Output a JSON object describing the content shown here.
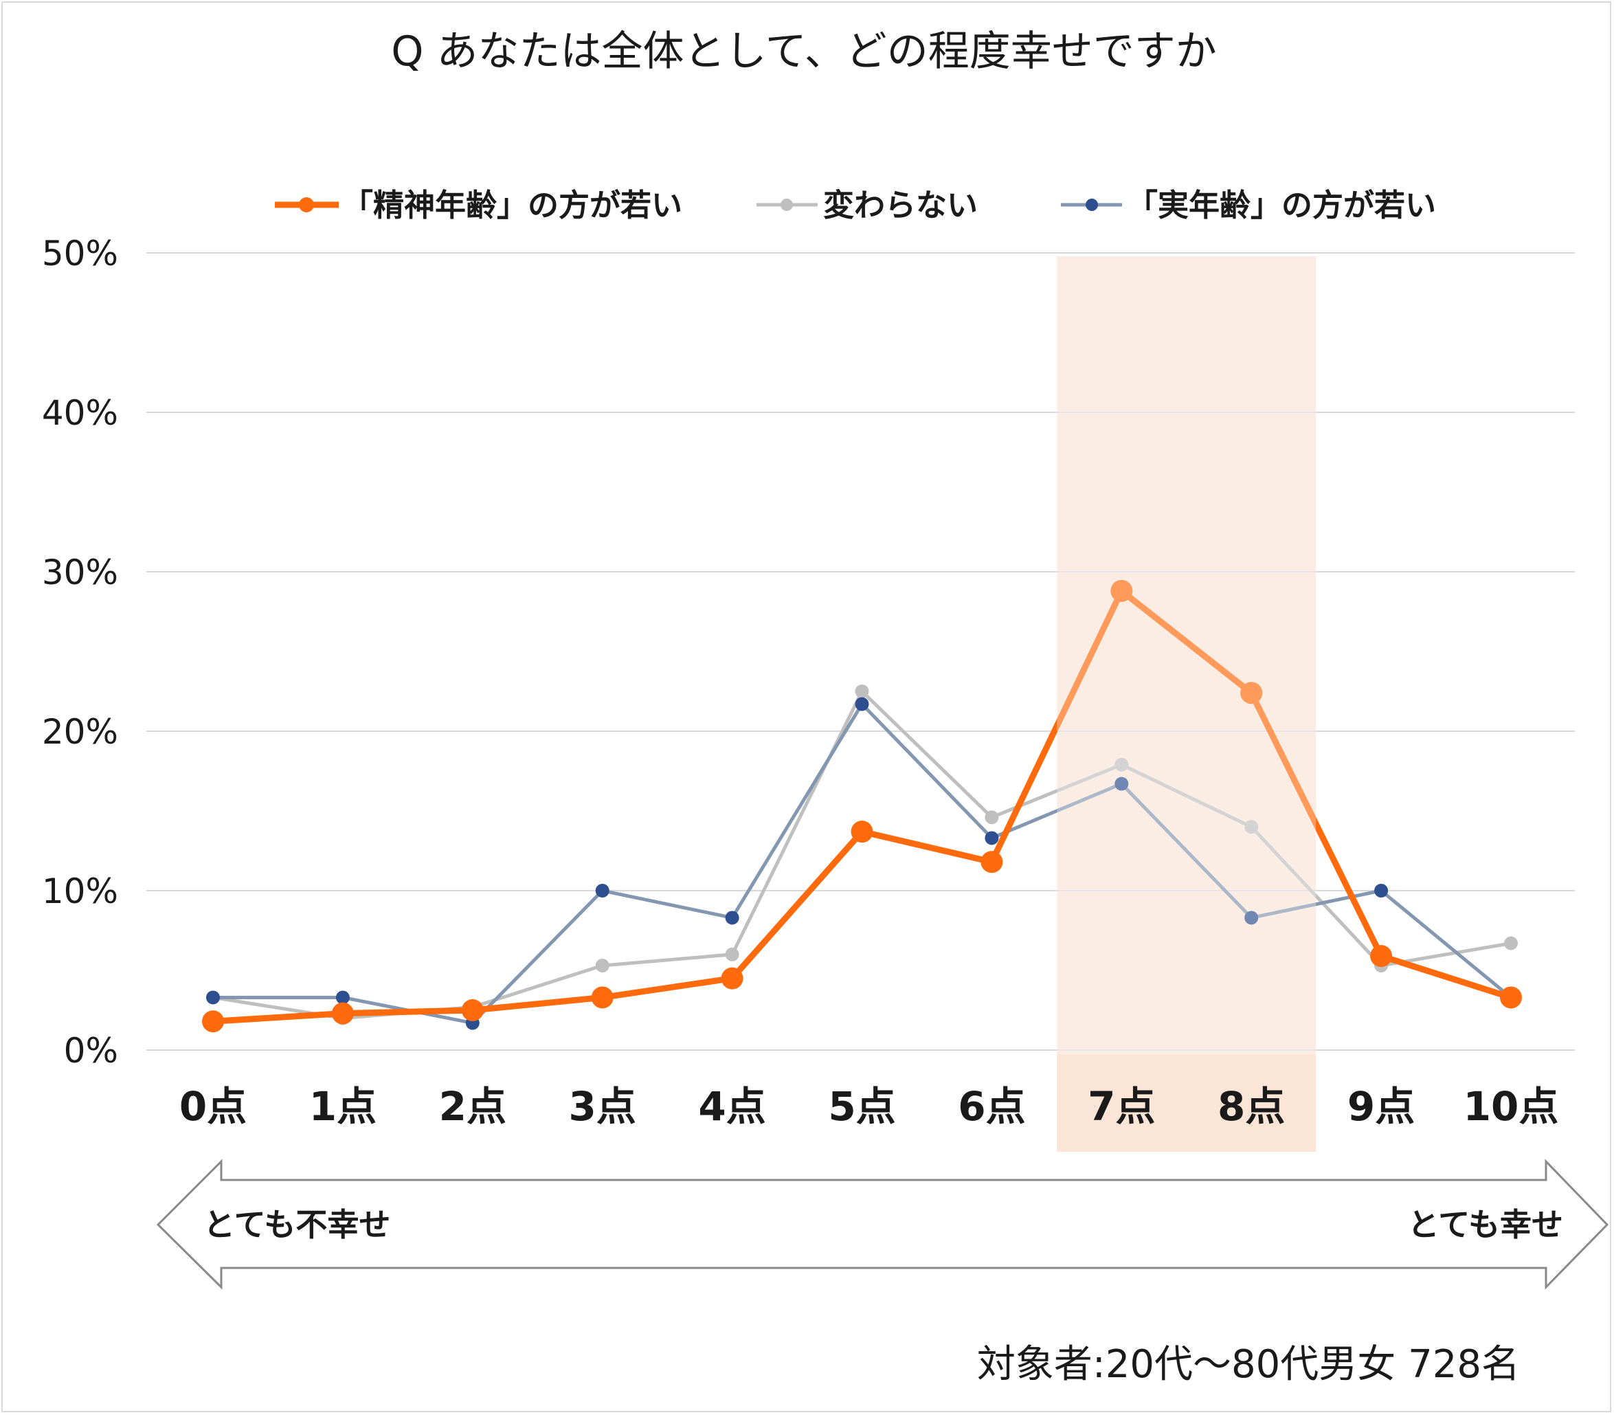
{
  "chart_data": {
    "type": "line",
    "title": "Q あなたは全体として、どの程度幸せですか",
    "categories": [
      "0点",
      "1点",
      "2点",
      "3点",
      "4点",
      "5点",
      "6点",
      "7点",
      "8点",
      "9点",
      "10点"
    ],
    "y_ticks": [
      "0%",
      "10%",
      "20%",
      "30%",
      "40%",
      "50%"
    ],
    "ylim": [
      0,
      50
    ],
    "grid": true,
    "legend_position": "top",
    "highlight_categories": [
      "7点",
      "8点"
    ],
    "series": [
      {
        "name": "「精神年齢」の方が若い",
        "color": "#ff6a0d",
        "values": [
          1.8,
          2.3,
          2.5,
          3.3,
          4.5,
          13.7,
          11.8,
          28.8,
          22.4,
          5.9,
          3.3
        ]
      },
      {
        "name": "変わらない",
        "color": "#bfbfbf",
        "values": [
          3.3,
          2.0,
          2.7,
          5.3,
          6.0,
          22.5,
          14.6,
          17.9,
          14.0,
          5.3,
          6.7
        ]
      },
      {
        "name": "「実年齢」の方が若い",
        "color": "#2e4f8f",
        "values": [
          3.3,
          3.3,
          1.7,
          10.0,
          8.3,
          21.7,
          13.3,
          16.7,
          8.3,
          10.0,
          3.3
        ]
      }
    ],
    "scale_arrow": {
      "left_label": "とても不幸せ",
      "right_label": "とても幸せ"
    },
    "note": "対象者:20代～80代男女 728名",
    "colors": {
      "highlight": "#fae5d6",
      "highlight_text": "#8c7160",
      "grid": "#d9d9d9",
      "series2_line": "#8497b0"
    }
  }
}
